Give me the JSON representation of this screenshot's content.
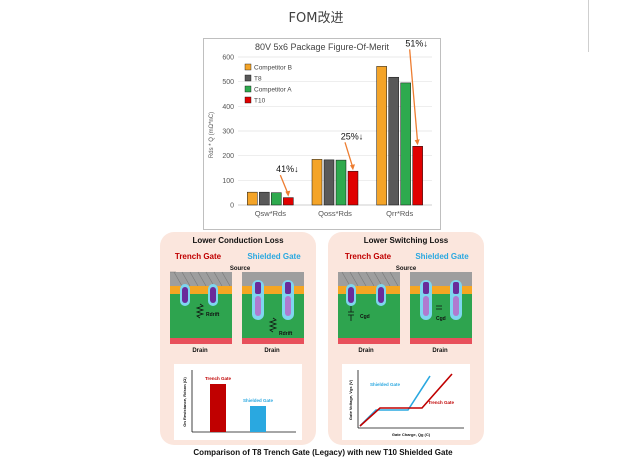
{
  "page": {
    "title": "FOM改进"
  },
  "chart_data": {
    "type": "bar",
    "title": "80V 5x6 Package Figure-Of-Merit",
    "xlabel": "",
    "ylabel": "Rds * Q (mΩ*nC)",
    "ylim": [
      0,
      600
    ],
    "yticks": [
      "0",
      "100",
      "200",
      "300",
      "400",
      "500",
      "600"
    ],
    "grid": true,
    "legend_position": "top-left",
    "categories": [
      "Qsw*Rds",
      "Qoss*Rds",
      "Qrr*Rds"
    ],
    "series": [
      {
        "name": "Competitor B",
        "color": "#f4a428",
        "values": [
          52,
          185,
          562
        ]
      },
      {
        "name": "T8",
        "color": "#595959",
        "values": [
          52,
          183,
          518
        ]
      },
      {
        "name": "Competitor A",
        "color": "#2eaa4e",
        "values": [
          50,
          182,
          495
        ]
      },
      {
        "name": "T10",
        "color": "#e00000",
        "values": [
          30,
          137,
          238
        ]
      }
    ],
    "annotations": [
      "41%↓",
      "25%↓",
      "51%↓"
    ],
    "annotation_color": "#ed7d31"
  },
  "lower_panels": {
    "conduction": {
      "title": "Lower Conduction Loss",
      "trench_label": "Trench Gate",
      "shielded_label": "Shielded Gate",
      "source_label": "Source",
      "drain_label": "Drain",
      "gate_label": "Gate",
      "rdrift_label": "Rdrift",
      "graph_ylabel": "On Resistance, Rdson (Ω)",
      "graph_series": [
        {
          "name": "Trench Gate",
          "color": "#c00000",
          "value": 1.0
        },
        {
          "name": "Shielded Gate",
          "color": "#2aa8e0",
          "value": 0.55
        }
      ]
    },
    "switching": {
      "title": "Lower Switching Loss",
      "trench_label": "Trench Gate",
      "shielded_label": "Shielded Gate",
      "source_label": "Source",
      "drain_label": "Drain",
      "gate_label": "Gate",
      "cgd_label": "Cgd",
      "graph_ylabel": "Gate Voltage, Vgs (V)",
      "graph_xlabel": "Gate Charge, Qg (C)",
      "shielded_curve_label": "Shielded Gate",
      "trench_curve_label": "Trench Gate"
    },
    "caption": "Comparison of T8 Trench Gate (Legacy) with new T10 Shielded Gate"
  },
  "colors": {
    "trench_text": "#c00000",
    "shielded_text": "#2aa8e0",
    "epi_green": "#2ea44f",
    "metal_grey": "#9e9e9e",
    "drain_pink": "#e8505b",
    "gate_purple": "#6a2b9a",
    "orange_body": "#f5a623"
  }
}
